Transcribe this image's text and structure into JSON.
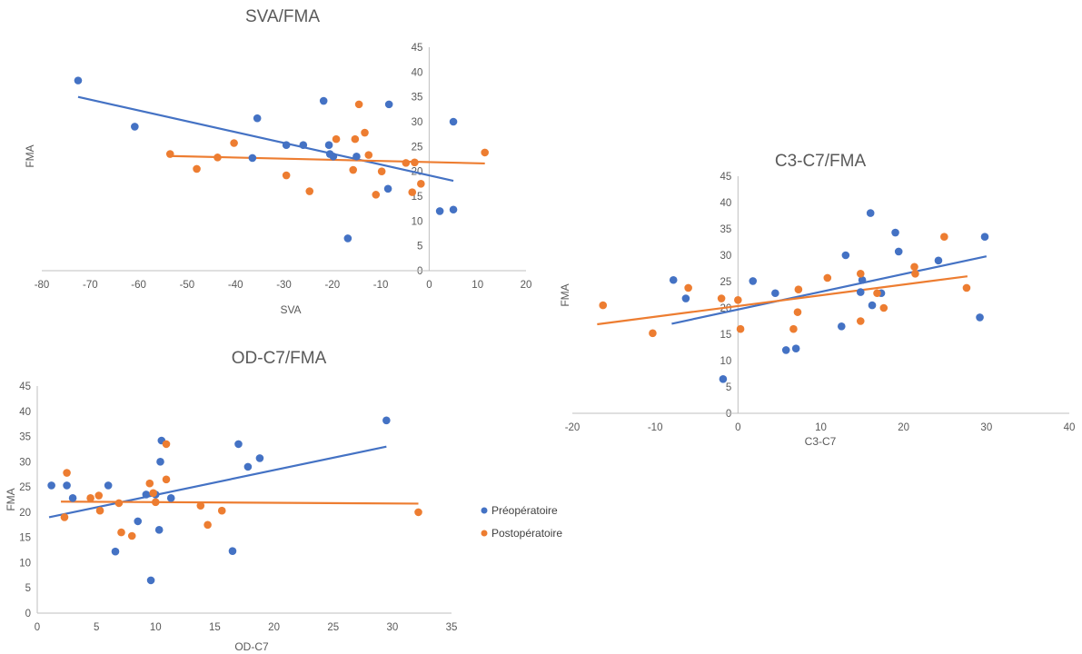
{
  "colors": {
    "pre": "#4472C4",
    "post": "#ED7D31",
    "axis": "#BFBFBF",
    "text": "#595959"
  },
  "legend": {
    "pre": "Préopératoire",
    "post": "Postopératoire"
  },
  "chart_data": [
    {
      "id": "sva",
      "type": "scatter",
      "title": "SVA/FMA",
      "xlabel": "SVA",
      "ylabel": "FMA",
      "xlim": [
        -80,
        20
      ],
      "ylim": [
        0,
        45
      ],
      "xticks": [
        "-80",
        "-70",
        "-60",
        "-50",
        "-40",
        "-30",
        "-20",
        "-10",
        "0",
        "10",
        "20"
      ],
      "yticks": [
        "0",
        "5",
        "10",
        "15",
        "20",
        "25",
        "30",
        "35",
        "40",
        "45"
      ],
      "grid": false,
      "series": [
        {
          "name": "Préopératoire",
          "x": [
            -72.5,
            -60.8,
            -35.5,
            -36.5,
            -29.5,
            -26,
            -21.8,
            -20.7,
            -20.5,
            -19.8,
            -15,
            -8.3,
            -8.5,
            -16.8,
            5,
            2.2,
            5
          ],
          "y": [
            38.3,
            29,
            30.7,
            22.7,
            25.3,
            25.3,
            34.2,
            25.3,
            23.5,
            23,
            23,
            33.5,
            16.5,
            6.5,
            30,
            12,
            12.3
          ],
          "trend": [
            [
              -72.5,
              35.0
            ],
            [
              5,
              18.1
            ]
          ]
        },
        {
          "name": "Postopératoire",
          "x": [
            -53.5,
            -48,
            -43.7,
            -40.3,
            -29.5,
            -24.7,
            -19.2,
            -15.7,
            -15.3,
            -14.5,
            -13.3,
            -12.5,
            -11,
            -9.8,
            -4.8,
            -3.5,
            -3.0,
            -1.7,
            11.5
          ],
          "y": [
            23.5,
            20.5,
            22.8,
            25.7,
            19.2,
            16,
            26.5,
            20.3,
            26.5,
            33.5,
            27.8,
            23.3,
            15.3,
            20,
            21.7,
            15.8,
            21.8,
            17.5,
            23.8
          ],
          "trend": [
            [
              -53.5,
              23.1
            ],
            [
              11.5,
              21.6
            ]
          ]
        }
      ]
    },
    {
      "id": "c3c7",
      "type": "scatter",
      "title": "C3-C7/FMA",
      "xlabel": "C3-C7",
      "ylabel": "FMA",
      "xlim": [
        -20,
        40
      ],
      "ylim": [
        0,
        45
      ],
      "xticks": [
        "-20",
        "-10",
        "0",
        "10",
        "20",
        "30",
        "40"
      ],
      "yticks": [
        "0",
        "5",
        "10",
        "15",
        "20",
        "25",
        "30",
        "35",
        "40",
        "45"
      ],
      "grid": false,
      "series": [
        {
          "name": "Préopératoire",
          "x": [
            -7.8,
            -6.3,
            -1.8,
            1.8,
            4.5,
            5.8,
            7.0,
            12.5,
            13.0,
            14.8,
            15.0,
            16.0,
            16.2,
            17.3,
            19.0,
            19.4,
            24.2,
            29.2,
            29.8
          ],
          "y": [
            25.3,
            21.8,
            6.5,
            25.1,
            22.8,
            12.0,
            12.3,
            16.5,
            30.0,
            23.0,
            25.3,
            38.0,
            20.5,
            22.8,
            34.3,
            30.7,
            29.0,
            18.2,
            33.5
          ],
          "trend": [
            [
              -8,
              17.0
            ],
            [
              30,
              29.8
            ]
          ]
        },
        {
          "name": "Postopératoire",
          "x": [
            -16.3,
            -10.3,
            -6.0,
            -2.0,
            0.0,
            0.3,
            6.7,
            7.2,
            7.3,
            10.8,
            14.8,
            14.8,
            16.8,
            17.6,
            21.3,
            21.4,
            24.9,
            27.6
          ],
          "y": [
            20.5,
            15.2,
            23.8,
            21.8,
            21.5,
            16.0,
            16.0,
            19.2,
            23.5,
            25.7,
            26.5,
            17.5,
            22.8,
            20.0,
            27.8,
            26.5,
            33.5,
            23.8
          ],
          "trend": [
            [
              -17,
              16.9
            ],
            [
              27.7,
              26.0
            ]
          ]
        }
      ]
    },
    {
      "id": "odc7",
      "type": "scatter",
      "title": "OD-C7/FMA",
      "xlabel": "OD-C7",
      "ylabel": "FMA",
      "xlim": [
        0,
        35
      ],
      "ylim": [
        0,
        45
      ],
      "xticks": [
        "0",
        "5",
        "10",
        "15",
        "20",
        "25",
        "30",
        "35"
      ],
      "yticks": [
        "0",
        "5",
        "10",
        "15",
        "20",
        "25",
        "30",
        "35",
        "40",
        "45"
      ],
      "grid": false,
      "series": [
        {
          "name": "Préopératoire",
          "x": [
            1.2,
            2.5,
            3.0,
            6.0,
            6.6,
            8.5,
            9.2,
            9.6,
            10.0,
            10.3,
            10.4,
            10.5,
            11.3,
            16.5,
            17.0,
            17.8,
            18.8,
            29.5
          ],
          "y": [
            25.3,
            25.3,
            22.8,
            25.3,
            12.2,
            18.2,
            23.5,
            6.5,
            23.5,
            16.5,
            30.0,
            34.2,
            22.8,
            12.3,
            33.5,
            29.0,
            30.7,
            38.2
          ],
          "trend": [
            [
              1,
              19.0
            ],
            [
              29.5,
              33.0
            ]
          ]
        },
        {
          "name": "Postopératoire",
          "x": [
            2.3,
            2.5,
            4.5,
            5.2,
            5.3,
            6.9,
            7.1,
            8.0,
            9.5,
            9.8,
            10.0,
            10.9,
            10.9,
            13.8,
            14.4,
            15.6,
            32.2
          ],
          "y": [
            19.0,
            27.8,
            22.8,
            23.3,
            20.3,
            21.8,
            16.0,
            15.3,
            25.7,
            23.8,
            22.0,
            26.5,
            33.5,
            21.3,
            17.5,
            20.3,
            20.0
          ],
          "trend": [
            [
              2,
              22.1
            ],
            [
              32.2,
              21.7
            ]
          ]
        }
      ]
    }
  ]
}
